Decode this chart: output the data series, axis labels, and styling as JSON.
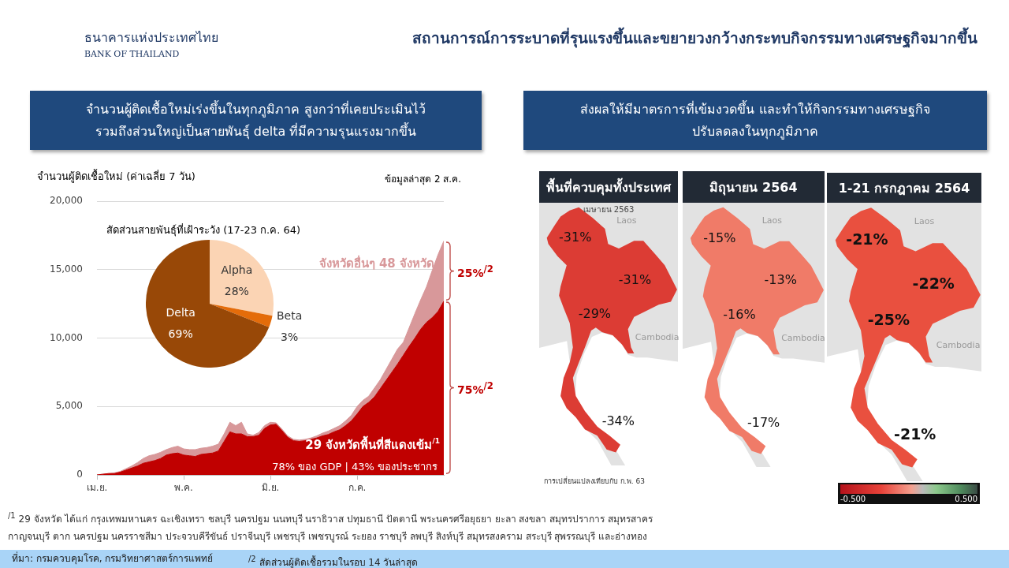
{
  "chart_data": [
    {
      "type": "other",
      "title": "สถานการณ์การระบาดที่รุนแรงขึ้นและขยายวงกว้างกระทบกิจกรรมทางเศรษฐกิจมากขึ้น",
      "annotations": [
        "ธนาคารแห่งประเทศไทย",
        "BANK OF THAILAND"
      ]
    },
    {
      "type": "area",
      "stacked": true,
      "title": "จำนวนผู้ติดเชื้อใหม่เร่งขึ้นในทุกภูมิภาค สูงกว่าที่เคยประเมินไว้ รวมถึงส่วนใหญ่เป็นสายพันธุ์ delta ที่มีความรุนแรงมากขึ้น",
      "ylabel": "จำนวนผู้ติดเชื้อใหม่ (ค่าเฉลี่ย 7 วัน)",
      "categories": [
        "เม.ย.",
        null,
        null,
        null,
        null,
        null,
        null,
        null,
        null,
        null,
        null,
        null,
        null,
        null,
        null,
        "พ.ค.",
        null,
        null,
        null,
        null,
        null,
        null,
        null,
        null,
        null,
        null,
        null,
        null,
        null,
        null,
        "มิ.ย.",
        null,
        null,
        null,
        null,
        null,
        null,
        null,
        null,
        null,
        null,
        null,
        null,
        null,
        null,
        "ก.ค.",
        null,
        null,
        null,
        null,
        null,
        null,
        null,
        null,
        null,
        null,
        null,
        null,
        null,
        null,
        null
      ],
      "series": [
        {
          "name": "29 จังหวัดพื้นที่สีแดงเข้ม$^{/1}$",
          "color": "#c00000",
          "values": [
            0,
            50,
            100,
            100,
            200,
            350,
            500,
            650,
            850,
            950,
            1050,
            1200,
            1450,
            1550,
            1600,
            1450,
            1400,
            1350,
            1500,
            1550,
            1600,
            1750,
            2450,
            3150,
            3000,
            3000,
            2800,
            2800,
            2900,
            3400,
            3650,
            3700,
            3250,
            2750,
            2500,
            2450,
            2500,
            2600,
            2700,
            2850,
            2950,
            3150,
            3300,
            3600,
            3950,
            4450,
            5000,
            5300,
            5700,
            6300,
            6900,
            7500,
            8100,
            8750,
            9400,
            10000,
            10650,
            11150,
            11500,
            11950,
            12700
          ]
        },
        {
          "name": "จังหวัดอื่นๆ 48 จังหวัด",
          "color": "#d8989a",
          "values": [
            0,
            0,
            0,
            50,
            50,
            100,
            150,
            250,
            350,
            450,
            450,
            450,
            400,
            450,
            500,
            450,
            450,
            500,
            450,
            450,
            500,
            500,
            550,
            700,
            600,
            850,
            200,
            100,
            200,
            200,
            200,
            100,
            100,
            100,
            100,
            100,
            100,
            100,
            150,
            200,
            250,
            250,
            300,
            350,
            400,
            550,
            450,
            450,
            650,
            650,
            800,
            950,
            1100,
            950,
            1350,
            1800,
            2150,
            2600,
            3450,
            4150,
            4400
          ]
        }
      ],
      "ylim": [
        0,
        20000
      ],
      "yticks": [
        0,
        {
          "value": 5000,
          "label": "5,000"
        },
        {
          "value": 10000,
          "label": "10,000"
        },
        {
          "value": 15000,
          "label": "15,000"
        },
        {
          "value": 20000,
          "label": "20,000"
        }
      ],
      "grid": "y",
      "annotations": [
        "ข้อมูลล่าสุด 2 ส.ค.",
        "78% ของ GDP | 43% ของประชากร",
        "25%$^{/2}$",
        "75%$^{/2}$",
        "$^{/1}$ 29 จังหวัด ได้แก่ กรุงเทพมหานคร ฉะเชิงเทรา ชลบุรี นครปฐม นนทบุรี นราธิวาส ปทุมธานี ปัตตานี พระนครศรีอยุธยา ยะลา สงขลา สมุทรปราการ สมุทรสาคร กาญจนบุรี ตาก นครปฐม นครราชสีมา ประจวบคีรีขันธ์ ปราจีนบุรี เพชรบุรี เพชรบูรณ์ ระยอง ราชบุรี ลพบุรี สิงห์บุรี สมุทรสงคราม สระบุรี สุพรรณบุรี และอ่างทอง",
        "ที่มา: กรมควบคุมโรค, กรมวิทยาศาสตร์การแพทย์",
        "$^{/2}$ สัดส่วนผู้ติดเชื้อรวมในรอบ 14 วันล่าสุด"
      ]
    },
    {
      "type": "pie",
      "title": "สัดส่วนสายพันธุ์ที่เฝ้าระวัง (17-23 ก.ค. 64)",
      "categories": [
        "Alpha",
        "Beta",
        "Delta"
      ],
      "values": [
        28,
        3,
        69
      ],
      "colors": [
        "#fbd4b4",
        "#e46c0a",
        "#984807"
      ],
      "value_labels": [
        "28%",
        "3%",
        "69%"
      ]
    },
    {
      "type": "other",
      "title": "ส่งผลให้มีมาตรการที่เข้มงวดขึ้น และทำให้กิจกรรมทางเศรษฐกิจ ปรับลดลงในทุกภูมิภาค",
      "annotations": [
        "การเปลี่ยนแปลงเทียบกับ ก.พ. 63",
        "-0.500",
        "0.500"
      ]
    },
    {
      "type": "other",
      "title": "พื้นที่ควบคุมทั้งประเทศ",
      "subtitle": "เมษายน 2563",
      "color": "#dc3c34",
      "annotations": [
        "-31%",
        "-31%",
        "-29%",
        "-34%",
        "Laos",
        "Cambodia"
      ]
    },
    {
      "type": "other",
      "title": "มิถุนายน 2564",
      "color": "#f07b68",
      "annotations": [
        "-15%",
        "-13%",
        "-16%",
        "-17%",
        "Laos",
        "Cambodia"
      ]
    },
    {
      "type": "other",
      "title": "1-21 กรกฎาคม 2564",
      "color": "#e9503f",
      "annotations": [
        "-21%",
        "-22%",
        "-25%",
        "-21%",
        "Laos",
        "Cambodia"
      ]
    }
  ]
}
